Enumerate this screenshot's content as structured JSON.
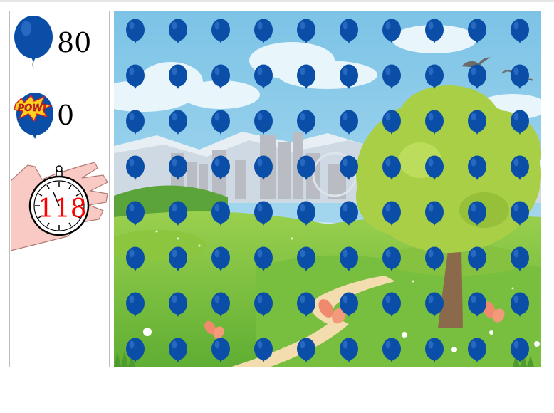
{
  "hud": {
    "remaining_count": "80",
    "popped_count": "0",
    "timer_seconds": "118",
    "remaining_icon": "blue-balloon-icon",
    "popped_icon": "pow-balloon-icon",
    "timer_icon": "stopwatch-hand-icon",
    "pow_text": "POW!"
  },
  "board": {
    "rows": 8,
    "cols": 10,
    "balloon_color": "#0a4ea8",
    "balloon_highlight": "#3f7fd4"
  },
  "colors": {
    "sky": "#8fcbe8",
    "grass": "#7cc243",
    "tree": "#a8cf45",
    "timer_text": "#ff0000"
  }
}
